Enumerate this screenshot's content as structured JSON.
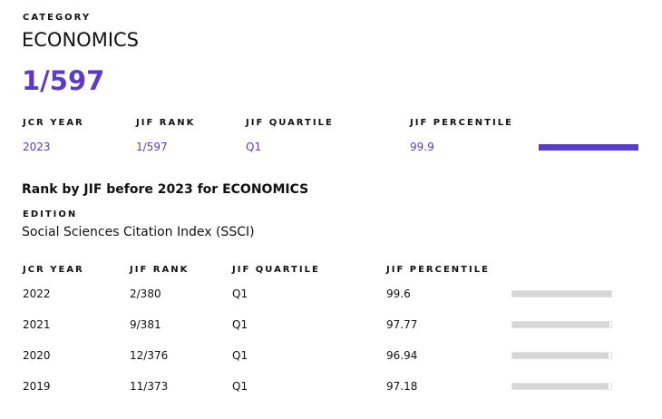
{
  "category_label": "CATEGORY",
  "category": "ECONOMICS",
  "rank": "1/597",
  "current": {
    "headers": [
      "JCR YEAR",
      "JIF RANK",
      "JIF QUARTILE",
      "JIF PERCENTILE"
    ],
    "row": [
      "2023",
      "1/597",
      "Q1",
      99.9
    ]
  },
  "history": {
    "title": "Rank by JIF before 2023 for ECONOMICS",
    "edition_label": "EDITION",
    "edition": "Social Sciences Citation Index (SSCI)",
    "headers": [
      "JCR YEAR",
      "JIF RANK",
      "JIF QUARTILE",
      "JIF PERCENTILE"
    ],
    "rows": [
      [
        "2022",
        "2/380",
        "Q1",
        99.6
      ],
      [
        "2021",
        "9/381",
        "Q1",
        97.77
      ],
      [
        "2020",
        "12/376",
        "Q1",
        96.94
      ],
      [
        "2019",
        "11/373",
        "Q1",
        97.18
      ]
    ]
  }
}
